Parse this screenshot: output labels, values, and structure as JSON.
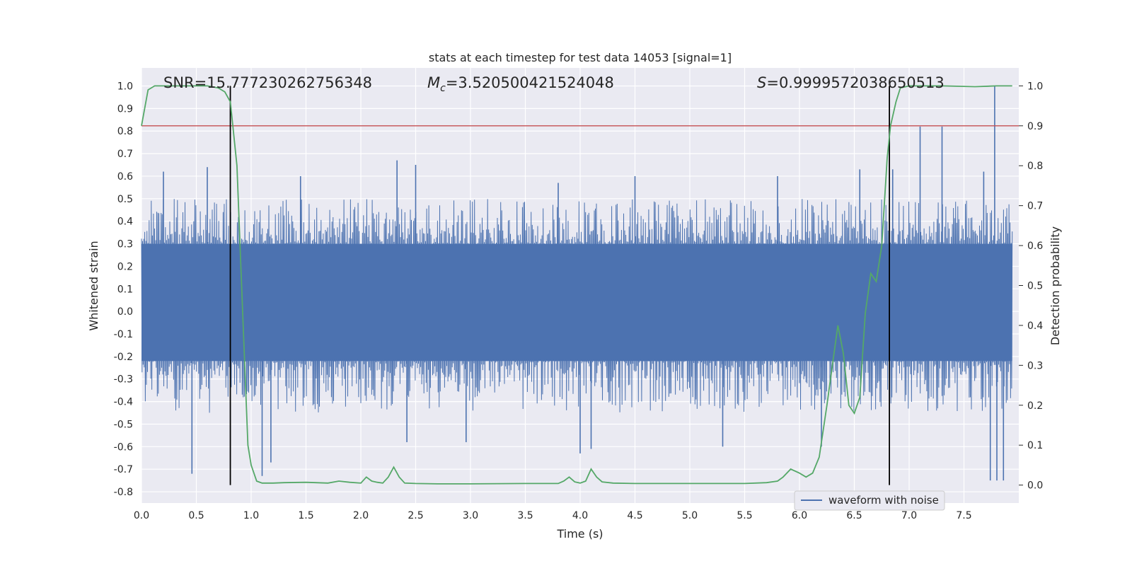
{
  "chart_data": {
    "type": "line",
    "title": "stats at each timestep for test data 14053 [signal=1]",
    "xlabel": "Time (s)",
    "ylabel": "Whitened strain",
    "y2label": "Detection probability",
    "xlim": [
      0.0,
      8.0
    ],
    "ylim": [
      -0.85,
      1.08
    ],
    "y2lim": [
      -0.045,
      1.045
    ],
    "xticks": [
      "0.0",
      "0.5",
      "1.0",
      "1.5",
      "2.0",
      "2.5",
      "3.0",
      "3.5",
      "4.0",
      "4.5",
      "5.0",
      "5.5",
      "6.0",
      "6.5",
      "7.0",
      "7.5"
    ],
    "yticks": [
      "1.0",
      "0.9",
      "0.8",
      "0.7",
      "0.6",
      "0.5",
      "0.4",
      "0.3",
      "0.2",
      "0.1",
      "0.0",
      "-0.1",
      "-0.2",
      "-0.3",
      "-0.4",
      "-0.5",
      "-0.6",
      "-0.7",
      "-0.8"
    ],
    "y2ticks": [
      "1.0",
      "0.9",
      "0.8",
      "0.7",
      "0.6",
      "0.5",
      "0.4",
      "0.3",
      "0.2",
      "0.1",
      "0.0"
    ],
    "annotations": {
      "snr": "SNR=15.777230262756348",
      "mc_symbol": "M",
      "mc_sub": "c",
      "mc_value": "=3.520500421524048",
      "s_symbol": "S",
      "s_value": "=0.9999572038650513"
    },
    "legend": {
      "label": "waveform with noise",
      "placement": "lower-right"
    },
    "threshold": {
      "y2": 0.9,
      "color": "#c44e52"
    },
    "vlines": [
      0.81,
      6.82
    ],
    "waveform": {
      "name": "waveform with noise",
      "color": "#4c72b0",
      "t_range": [
        0.0,
        7.94
      ],
      "typical_envelope": [
        -0.45,
        0.5
      ],
      "dense_band": [
        -0.22,
        0.3
      ],
      "peaks": [
        {
          "t": 0.2,
          "v": 0.62
        },
        {
          "t": 0.6,
          "v": 0.64
        },
        {
          "t": 1.45,
          "v": 0.6
        },
        {
          "t": 2.33,
          "v": 0.67
        },
        {
          "t": 2.5,
          "v": 0.65
        },
        {
          "t": 3.8,
          "v": 0.57
        },
        {
          "t": 4.5,
          "v": 0.6
        },
        {
          "t": 5.8,
          "v": 0.6
        },
        {
          "t": 6.55,
          "v": 0.63
        },
        {
          "t": 6.85,
          "v": 0.63
        },
        {
          "t": 7.1,
          "v": 0.82
        },
        {
          "t": 7.3,
          "v": 0.82
        },
        {
          "t": 7.68,
          "v": 0.62
        },
        {
          "t": 7.78,
          "v": 1.0
        }
      ],
      "troughs": [
        {
          "t": 0.46,
          "v": -0.72
        },
        {
          "t": 1.1,
          "v": -0.73
        },
        {
          "t": 1.18,
          "v": -0.67
        },
        {
          "t": 2.42,
          "v": -0.58
        },
        {
          "t": 2.96,
          "v": -0.58
        },
        {
          "t": 4.0,
          "v": -0.63
        },
        {
          "t": 4.1,
          "v": -0.61
        },
        {
          "t": 5.3,
          "v": -0.6
        },
        {
          "t": 6.2,
          "v": -0.6
        },
        {
          "t": 7.74,
          "v": -0.75
        },
        {
          "t": 7.8,
          "v": -0.75
        },
        {
          "t": 7.86,
          "v": -0.75
        }
      ]
    },
    "probability": {
      "name": "Detection probability",
      "color": "#55a868",
      "x": [
        0.0,
        0.06,
        0.12,
        0.2,
        0.4,
        0.6,
        0.7,
        0.76,
        0.81,
        0.87,
        0.92,
        0.97,
        1.0,
        1.05,
        1.1,
        1.2,
        1.3,
        1.5,
        1.7,
        1.8,
        1.9,
        2.0,
        2.05,
        2.1,
        2.15,
        2.2,
        2.25,
        2.3,
        2.35,
        2.4,
        2.5,
        2.7,
        3.0,
        3.5,
        3.8,
        3.85,
        3.9,
        3.95,
        4.0,
        4.05,
        4.1,
        4.15,
        4.2,
        4.3,
        4.5,
        5.0,
        5.5,
        5.7,
        5.8,
        5.85,
        5.92,
        6.0,
        6.06,
        6.12,
        6.18,
        6.25,
        6.3,
        6.35,
        6.4,
        6.45,
        6.5,
        6.55,
        6.6,
        6.65,
        6.7,
        6.75,
        6.8,
        6.83,
        6.88,
        6.92,
        7.0,
        7.3,
        7.6,
        7.8,
        7.94
      ],
      "y": [
        0.9,
        0.99,
        1.0,
        1.0,
        1.0,
        1.0,
        0.995,
        0.985,
        0.96,
        0.8,
        0.45,
        0.1,
        0.05,
        0.01,
        0.005,
        0.005,
        0.006,
        0.007,
        0.005,
        0.01,
        0.007,
        0.005,
        0.02,
        0.01,
        0.007,
        0.005,
        0.02,
        0.045,
        0.02,
        0.005,
        0.004,
        0.003,
        0.003,
        0.004,
        0.004,
        0.01,
        0.02,
        0.008,
        0.005,
        0.01,
        0.04,
        0.02,
        0.008,
        0.005,
        0.004,
        0.004,
        0.004,
        0.006,
        0.01,
        0.02,
        0.04,
        0.03,
        0.02,
        0.03,
        0.07,
        0.2,
        0.3,
        0.4,
        0.33,
        0.2,
        0.18,
        0.22,
        0.43,
        0.53,
        0.51,
        0.6,
        0.82,
        0.9,
        0.96,
        0.995,
        1.0,
        1.0,
        0.998,
        1.0,
        1.0
      ]
    }
  }
}
